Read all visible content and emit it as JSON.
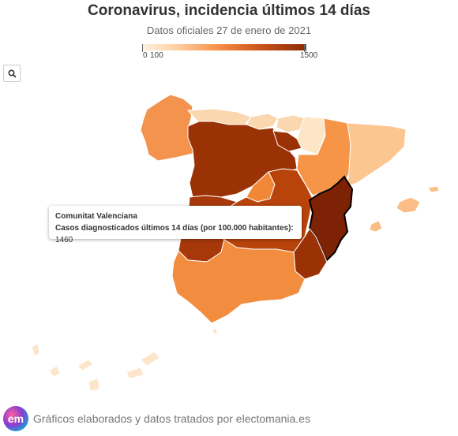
{
  "header": {
    "title": "Coronavirus, incidencia últimos 14 días",
    "subtitle": "Datos oficiales 27 de enero de 2021"
  },
  "legend": {
    "min_label": "0",
    "mid_label": "100",
    "max_label": "1500",
    "colors": [
      "#fff1e0",
      "#fdd2a5",
      "#f8934a",
      "#d0561a",
      "#8a2a07"
    ]
  },
  "zoom": {
    "icon": "search-icon"
  },
  "tooltip": {
    "region": "Comunitat Valenciana",
    "label": "Casos diagnosticados últimos 14 días (por 100.000 habitantes):",
    "value": "1460"
  },
  "footer": {
    "logo_text": "em",
    "text": "Gráficos elaborados y datos tratados por electomania.es"
  },
  "regions": [
    {
      "name": "Galicia",
      "color": "#f4934d"
    },
    {
      "name": "Asturias",
      "color": "#fbd7b0"
    },
    {
      "name": "Cantabria",
      "color": "#fbd7b0"
    },
    {
      "name": "País Vasco",
      "color": "#fbd7b0"
    },
    {
      "name": "Navarra",
      "color": "#fde5c8"
    },
    {
      "name": "La Rioja",
      "color": "#9a3206"
    },
    {
      "name": "Aragón",
      "color": "#f69448"
    },
    {
      "name": "Cataluña",
      "color": "#fcc690"
    },
    {
      "name": "Castilla y León",
      "color": "#9a3206"
    },
    {
      "name": "Madrid",
      "color": "#f08838"
    },
    {
      "name": "Castilla-La Mancha",
      "color": "#b8430b"
    },
    {
      "name": "Extremadura",
      "color": "#a6380a"
    },
    {
      "name": "Comunitat Valenciana",
      "color": "#7d2204"
    },
    {
      "name": "Región de Murcia",
      "color": "#9a3206"
    },
    {
      "name": "Andalucía",
      "color": "#f28c3f"
    },
    {
      "name": "Illes Balears",
      "color": "#fbbd85"
    },
    {
      "name": "Canarias",
      "color": "#fde5cc"
    }
  ]
}
